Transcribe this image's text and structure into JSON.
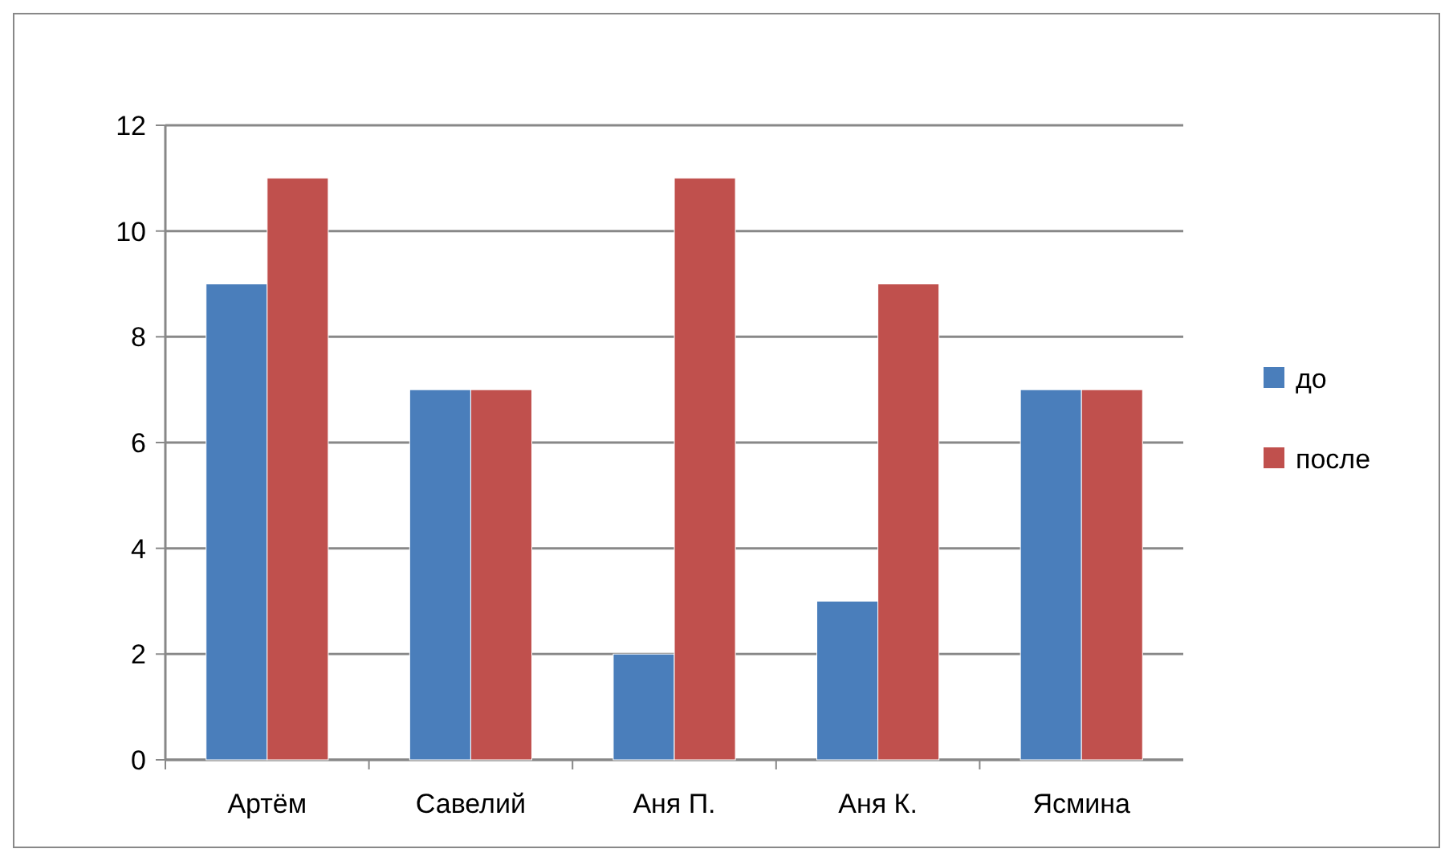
{
  "chart_data": {
    "type": "bar",
    "categories": [
      "Артём",
      "Савелий",
      "Аня П.",
      "Аня К.",
      "Ясмина"
    ],
    "series": [
      {
        "name": "до",
        "color": "#4a7ebb",
        "values": [
          9,
          7,
          2,
          3,
          7
        ]
      },
      {
        "name": "после",
        "color": "#c0504d",
        "values": [
          11,
          7,
          11,
          9,
          7
        ]
      }
    ],
    "ylim": [
      0,
      12
    ],
    "yticks": [
      0,
      2,
      4,
      6,
      8,
      10,
      12
    ],
    "grid": "y",
    "legend": "right"
  }
}
